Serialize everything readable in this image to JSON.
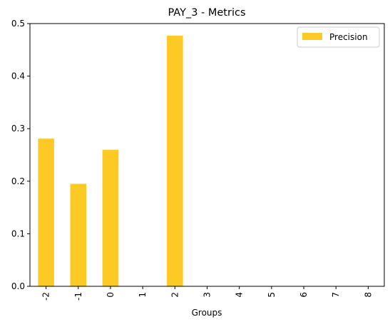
{
  "chart_data": {
    "type": "bar",
    "title": "PAY_3 - Metrics",
    "xlabel": "Groups",
    "ylabel": "",
    "categories": [
      "-2",
      "-1",
      "0",
      "1",
      "2",
      "3",
      "4",
      "5",
      "6",
      "7",
      "8"
    ],
    "series": [
      {
        "name": "Precision",
        "color": "#fcc925",
        "values": [
          0.281,
          0.195,
          0.26,
          0.0,
          0.477,
          0.0,
          0.0,
          0.0,
          0.0,
          0.0,
          0.0
        ]
      }
    ],
    "ylim": [
      0,
      0.5
    ],
    "yticks": [
      0.0,
      0.1,
      0.2,
      0.3,
      0.4,
      0.5
    ],
    "ytick_labels": [
      "0.0",
      "0.1",
      "0.2",
      "0.3",
      "0.4",
      "0.5"
    ],
    "grid": false,
    "legend_position": "top-right"
  }
}
